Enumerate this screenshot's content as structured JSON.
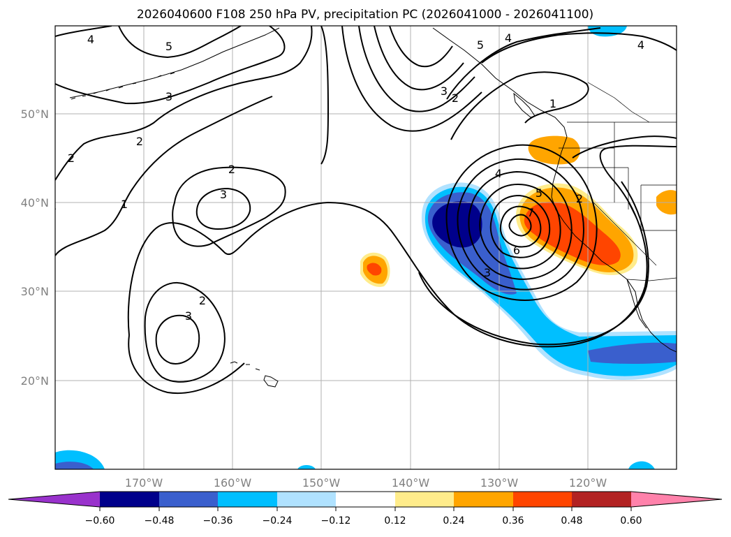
{
  "title": "2026040600 F108 250 hPa PV, precipitation PC (2026041000 - 2026041100)",
  "map": {
    "lat_labels": [
      "50°N",
      "40°N",
      "30°N",
      "20°N"
    ],
    "lon_labels": [
      "170°W",
      "160°W",
      "150°W",
      "140°W",
      "130°W",
      "120°W"
    ]
  },
  "contour_labels": [
    "4",
    "5",
    "3",
    "2",
    "2",
    "1",
    "2",
    "3",
    "2",
    "3",
    "3",
    "2",
    "5",
    "4",
    "4",
    "1",
    "4",
    "5",
    "7",
    "6",
    "3",
    "2"
  ],
  "colorbar": {
    "ticks": [
      "−0.60",
      "−0.48",
      "−0.36",
      "−0.24",
      "−0.12",
      "0.12",
      "0.24",
      "0.36",
      "0.48",
      "0.60"
    ],
    "colors": [
      "#9932cc",
      "#00008b",
      "#3a5fcd",
      "#00bfff",
      "#b0e2ff",
      "#ffffff",
      "#ffec8b",
      "#ffa500",
      "#ff4500",
      "#b22222",
      "#ff82ab"
    ]
  },
  "palette": {
    "dark_blue": "#00008b",
    "mid_blue": "#3a5fcd",
    "deep_sky": "#00bfff",
    "light_blue": "#b0e2ff",
    "light_yellow": "#ffec8b",
    "orange": "#ffa500",
    "orange_red": "#ff4500"
  }
}
